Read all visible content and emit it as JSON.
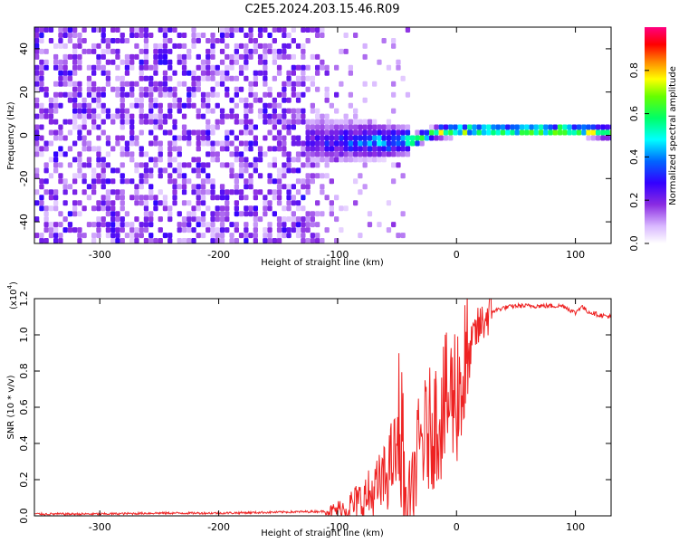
{
  "title": "C2E5.2024.203.15.46.R09",
  "chart_data": [
    {
      "type": "heatmap",
      "xlabel": "Height of straight line (km)",
      "ylabel": "Frequency (Hz)",
      "xlim": [
        -355,
        130
      ],
      "ylim": [
        -50,
        50
      ],
      "xticks": [
        -300,
        -200,
        -100,
        0,
        100
      ],
      "xtick_labels": [
        "-300",
        "-200",
        "-100",
        "0",
        "100"
      ],
      "yticks": [
        -40,
        -20,
        0,
        20,
        40
      ],
      "ytick_labels": [
        "-40",
        "-20",
        "0",
        "20",
        "40"
      ],
      "colorbar": {
        "label": "Normalized spectral amplitude",
        "range": [
          0,
          1
        ],
        "ticks": [
          0.0,
          0.2,
          0.4,
          0.6,
          0.8
        ],
        "tick_labels": [
          "0.0",
          "0.2",
          "0.4",
          "0.6",
          "0.8"
        ],
        "colormap": "rainbow (white-violet-blue-cyan-green-yellow-red-magenta)"
      },
      "features": {
        "noise_region_km": [
          -355,
          -110
        ],
        "transition_region_km": [
          -110,
          -40
        ],
        "signal_line_frequency_hz": [
          [
            -40,
            -4
          ],
          [
            -20,
            0
          ],
          [
            0,
            1
          ],
          [
            50,
            1
          ],
          [
            100,
            1
          ],
          [
            130,
            0
          ]
        ],
        "strong_signal_km": [
          -30,
          120
        ]
      }
    },
    {
      "type": "line",
      "xlabel": "Height of straight line (km)",
      "ylabel": "SNR (10 * v/v)",
      "exponent_label": "(x10",
      "exponent_power": "4",
      "exponent_close": ")",
      "xlim": [
        -355,
        130
      ],
      "ylim": [
        0,
        1.2
      ],
      "xticks": [
        -300,
        -200,
        -100,
        0,
        100
      ],
      "xtick_labels": [
        "-300",
        "-200",
        "-100",
        "0",
        "100"
      ],
      "yticks": [
        0.0,
        0.2,
        0.4,
        0.6,
        0.8,
        1.0,
        1.2
      ],
      "ytick_labels": [
        "0.0",
        "0.2",
        "0.4",
        "0.6",
        "0.8",
        "1.0",
        "1.2"
      ],
      "line_color": "#ee2222",
      "series": [
        {
          "x": [
            -355,
            -300,
            -250,
            -200,
            -150,
            -110,
            -100,
            -90,
            -80,
            -70,
            -60,
            -55,
            -50,
            -45,
            -42,
            -38,
            -35,
            -30,
            -25,
            -20,
            -15,
            -10,
            -5,
            0,
            5,
            10,
            15,
            20,
            25,
            30,
            40,
            50,
            60,
            70,
            80,
            90,
            100,
            105,
            110,
            120,
            130
          ],
          "values": [
            0.01,
            0.01,
            0.015,
            0.015,
            0.02,
            0.025,
            0.03,
            0.05,
            0.08,
            0.12,
            0.2,
            0.3,
            0.35,
            0.15,
            0.05,
            0.02,
            0.25,
            0.4,
            0.45,
            0.5,
            0.55,
            0.6,
            0.65,
            0.7,
            0.75,
            0.85,
            1.0,
            1.05,
            1.1,
            1.13,
            1.15,
            1.16,
            1.16,
            1.16,
            1.16,
            1.16,
            1.12,
            1.16,
            1.13,
            1.11,
            1.1
          ],
          "max_spikes": [
            0.45,
            0.88,
            0.82,
            0.92,
            1.0,
            1.1,
            1.15
          ]
        }
      ]
    }
  ]
}
